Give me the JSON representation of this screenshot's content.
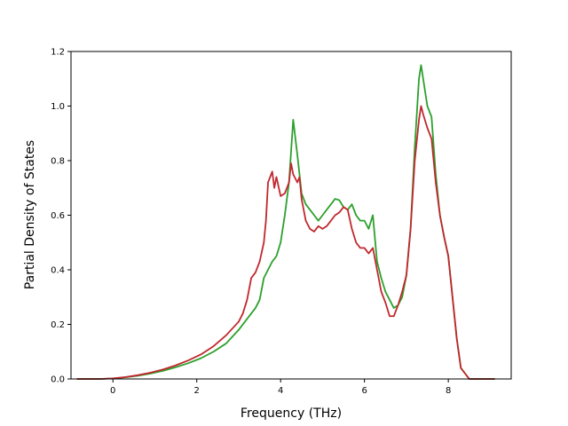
{
  "chart_data": {
    "type": "line",
    "title": "",
    "xlabel": "Frequency (THz)",
    "ylabel": "Partial Density of States",
    "xlim": [
      -1.0,
      9.5
    ],
    "ylim": [
      0.0,
      1.2
    ],
    "xticks": [
      0,
      2,
      4,
      6,
      8
    ],
    "xtick_labels": [
      "0",
      "2",
      "4",
      "6",
      "8"
    ],
    "yticks": [
      0.0,
      0.2,
      0.4,
      0.6,
      0.8,
      1.0,
      1.2
    ],
    "ytick_labels": [
      "0.0",
      "0.2",
      "0.4",
      "0.6",
      "0.8",
      "1.0",
      "1.2"
    ],
    "grid": false,
    "legend": "none",
    "series": [
      {
        "color": "#2ca02c",
        "x": [
          -0.85,
          -0.3,
          0.0,
          0.3,
          0.6,
          0.9,
          1.2,
          1.5,
          1.8,
          2.1,
          2.4,
          2.7,
          3.0,
          3.2,
          3.4,
          3.5,
          3.6,
          3.7,
          3.8,
          3.9,
          4.0,
          4.1,
          4.2,
          4.3,
          4.4,
          4.5,
          4.6,
          4.7,
          4.8,
          4.9,
          5.0,
          5.1,
          5.2,
          5.3,
          5.4,
          5.5,
          5.6,
          5.7,
          5.8,
          5.9,
          6.0,
          6.1,
          6.2,
          6.3,
          6.4,
          6.5,
          6.6,
          6.7,
          6.8,
          6.9,
          7.0,
          7.1,
          7.2,
          7.3,
          7.35,
          7.4,
          7.5,
          7.6,
          7.7,
          7.8,
          7.9,
          8.0,
          8.1,
          8.2,
          8.3,
          8.5,
          9.1
        ],
        "y": [
          0.0,
          0.0,
          0.002,
          0.006,
          0.012,
          0.02,
          0.03,
          0.043,
          0.058,
          0.076,
          0.1,
          0.13,
          0.18,
          0.22,
          0.26,
          0.29,
          0.37,
          0.4,
          0.43,
          0.45,
          0.5,
          0.6,
          0.72,
          0.95,
          0.82,
          0.68,
          0.64,
          0.62,
          0.6,
          0.58,
          0.6,
          0.62,
          0.64,
          0.66,
          0.655,
          0.63,
          0.62,
          0.64,
          0.6,
          0.58,
          0.58,
          0.55,
          0.6,
          0.43,
          0.37,
          0.32,
          0.29,
          0.26,
          0.27,
          0.3,
          0.38,
          0.55,
          0.85,
          1.1,
          1.15,
          1.1,
          1.0,
          0.96,
          0.75,
          0.6,
          0.52,
          0.45,
          0.3,
          0.15,
          0.04,
          0.0,
          0.0
        ]
      },
      {
        "color": "#c0282e",
        "x": [
          -0.85,
          -0.3,
          0.0,
          0.3,
          0.6,
          0.9,
          1.2,
          1.5,
          1.8,
          2.1,
          2.4,
          2.7,
          3.0,
          3.1,
          3.2,
          3.3,
          3.4,
          3.5,
          3.6,
          3.65,
          3.7,
          3.8,
          3.85,
          3.9,
          4.0,
          4.1,
          4.2,
          4.25,
          4.3,
          4.4,
          4.45,
          4.5,
          4.6,
          4.7,
          4.8,
          4.9,
          5.0,
          5.1,
          5.2,
          5.3,
          5.4,
          5.5,
          5.6,
          5.7,
          5.8,
          5.9,
          6.0,
          6.1,
          6.2,
          6.3,
          6.4,
          6.5,
          6.6,
          6.7,
          6.8,
          6.9,
          7.0,
          7.1,
          7.2,
          7.3,
          7.35,
          7.4,
          7.5,
          7.6,
          7.7,
          7.8,
          7.9,
          8.0,
          8.1,
          8.2,
          8.3,
          8.5,
          9.1
        ],
        "y": [
          0.0,
          0.0,
          0.002,
          0.007,
          0.014,
          0.023,
          0.035,
          0.05,
          0.068,
          0.09,
          0.12,
          0.16,
          0.21,
          0.24,
          0.29,
          0.37,
          0.39,
          0.43,
          0.5,
          0.58,
          0.72,
          0.76,
          0.7,
          0.74,
          0.67,
          0.68,
          0.72,
          0.79,
          0.75,
          0.72,
          0.74,
          0.66,
          0.58,
          0.55,
          0.54,
          0.56,
          0.55,
          0.56,
          0.58,
          0.6,
          0.61,
          0.63,
          0.62,
          0.55,
          0.5,
          0.48,
          0.48,
          0.46,
          0.48,
          0.4,
          0.32,
          0.28,
          0.23,
          0.23,
          0.27,
          0.32,
          0.38,
          0.55,
          0.8,
          0.95,
          1.0,
          0.97,
          0.92,
          0.88,
          0.72,
          0.6,
          0.52,
          0.45,
          0.3,
          0.15,
          0.04,
          0.0,
          0.0
        ]
      }
    ]
  }
}
